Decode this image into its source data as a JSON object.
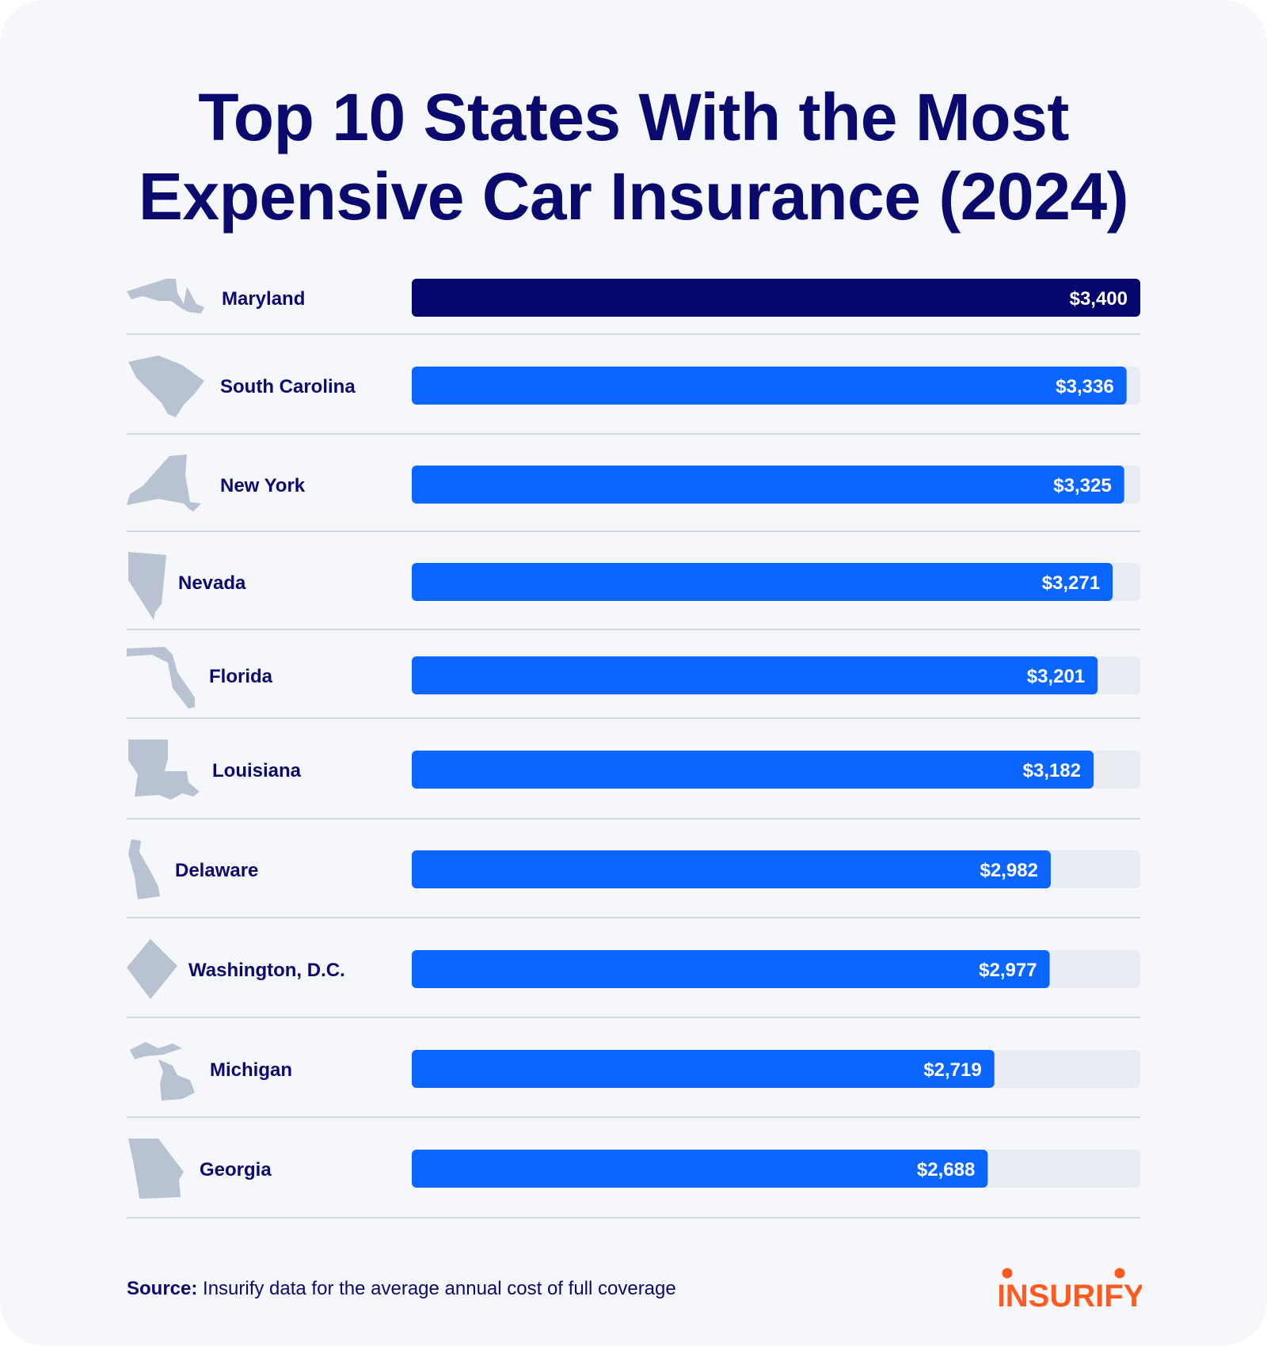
{
  "title_line1": "Top 10 States With the Most",
  "title_line2": "Expensive Car Insurance (2024)",
  "chart_data": {
    "type": "bar",
    "orientation": "horizontal",
    "categories": [
      "Maryland",
      "South Carolina",
      "New York",
      "Nevada",
      "Florida",
      "Louisiana",
      "Delaware",
      "Washington, D.C.",
      "Michigan",
      "Georgia"
    ],
    "values": [
      3400,
      3336,
      3325,
      3271,
      3201,
      3182,
      2982,
      2977,
      2719,
      2688
    ],
    "value_labels": [
      "$3,400",
      "$3,336",
      "$3,325",
      "$3,271",
      "$3,201",
      "$3,182",
      "$2,982",
      "$2,977",
      "$2,719",
      "$2,688"
    ],
    "xlim": [
      0,
      3400
    ],
    "grid": false,
    "icons": [
      "maryland-icon",
      "south-carolina-icon",
      "new-york-icon",
      "nevada-icon",
      "florida-icon",
      "louisiana-icon",
      "delaware-icon",
      "washington-dc-icon",
      "michigan-icon",
      "georgia-icon"
    ],
    "colors": {
      "highlight": "#06066e",
      "bar": "#0a66ff",
      "track": "#e9ecf2",
      "state_shape": "#b8c2d2",
      "label": "#0a0a6e",
      "divider": "#c9d0dc"
    }
  },
  "footer": {
    "source_label": "Source:",
    "source_text": "Insurify data for the average annual cost of full coverage"
  },
  "brand": {
    "name": "INSURIFY",
    "color": "#ff5a1f"
  }
}
